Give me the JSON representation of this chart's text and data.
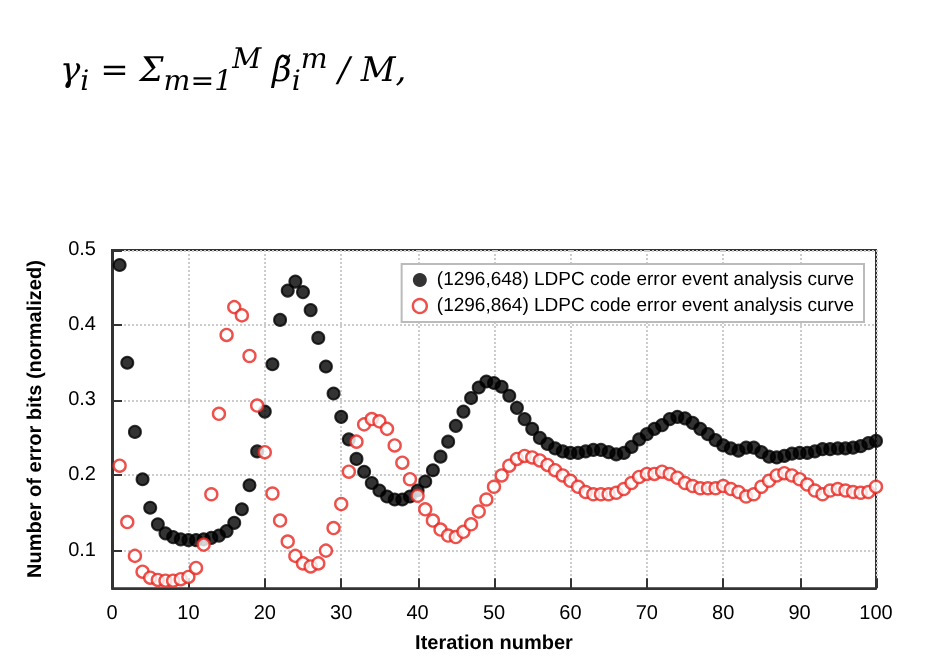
{
  "chart_data": {
    "type": "scatter",
    "xlabel": "Iteration number",
    "ylabel": "Number of error bits (normalized)",
    "annotations": [
      "γ$_{i}$ = Σ$_{m=1}$$^{M}$ β̃$_{i}$$^{m}$ / M,"
    ],
    "x": [
      1,
      2,
      3,
      4,
      5,
      6,
      7,
      8,
      9,
      10,
      11,
      12,
      13,
      14,
      15,
      16,
      17,
      18,
      19,
      20,
      21,
      22,
      23,
      24,
      25,
      26,
      27,
      28,
      29,
      30,
      31,
      32,
      33,
      34,
      35,
      36,
      37,
      38,
      39,
      40,
      41,
      42,
      43,
      44,
      45,
      46,
      47,
      48,
      49,
      50,
      51,
      52,
      53,
      54,
      55,
      56,
      57,
      58,
      59,
      60,
      61,
      62,
      63,
      64,
      65,
      66,
      67,
      68,
      69,
      70,
      71,
      72,
      73,
      74,
      75,
      76,
      77,
      78,
      79,
      80,
      81,
      82,
      83,
      84,
      85,
      86,
      87,
      88,
      89,
      90,
      91,
      92,
      93,
      94,
      95,
      96,
      97,
      98,
      99,
      100
    ],
    "series": [
      {
        "name": "(1296,648) LDPC code error event analysis curve",
        "color": "#000000",
        "values": [
          0.48,
          0.35,
          0.258,
          0.195,
          0.157,
          0.135,
          0.123,
          0.118,
          0.115,
          0.114,
          0.114,
          0.115,
          0.117,
          0.12,
          0.126,
          0.137,
          0.155,
          0.187,
          0.232,
          0.285,
          0.348,
          0.407,
          0.446,
          0.458,
          0.444,
          0.42,
          0.383,
          0.345,
          0.309,
          0.278,
          0.248,
          0.222,
          0.205,
          0.19,
          0.18,
          0.172,
          0.168,
          0.168,
          0.172,
          0.18,
          0.192,
          0.207,
          0.225,
          0.245,
          0.266,
          0.285,
          0.303,
          0.317,
          0.325,
          0.323,
          0.318,
          0.306,
          0.29,
          0.275,
          0.262,
          0.25,
          0.242,
          0.236,
          0.232,
          0.23,
          0.23,
          0.232,
          0.234,
          0.234,
          0.231,
          0.228,
          0.23,
          0.238,
          0.248,
          0.255,
          0.262,
          0.267,
          0.275,
          0.278,
          0.276,
          0.27,
          0.262,
          0.255,
          0.247,
          0.24,
          0.236,
          0.233,
          0.237,
          0.237,
          0.231,
          0.225,
          0.224,
          0.226,
          0.229,
          0.23,
          0.23,
          0.232,
          0.235,
          0.235,
          0.236,
          0.236,
          0.237,
          0.239,
          0.243,
          0.246
        ]
      },
      {
        "name": "(1296,864) LDPC code error event analysis curve",
        "color": "#e8261f",
        "values": [
          0.213,
          0.138,
          0.093,
          0.072,
          0.064,
          0.061,
          0.06,
          0.06,
          0.062,
          0.065,
          0.077,
          0.108,
          0.175,
          0.282,
          0.387,
          0.424,
          0.413,
          0.359,
          0.293,
          0.231,
          0.176,
          0.14,
          0.112,
          0.093,
          0.083,
          0.079,
          0.083,
          0.1,
          0.13,
          0.162,
          0.205,
          0.245,
          0.268,
          0.275,
          0.272,
          0.262,
          0.24,
          0.217,
          0.195,
          0.173,
          0.155,
          0.14,
          0.128,
          0.12,
          0.118,
          0.125,
          0.135,
          0.152,
          0.168,
          0.185,
          0.2,
          0.213,
          0.222,
          0.226,
          0.224,
          0.22,
          0.214,
          0.207,
          0.2,
          0.193,
          0.185,
          0.178,
          0.175,
          0.175,
          0.175,
          0.177,
          0.182,
          0.19,
          0.198,
          0.202,
          0.202,
          0.205,
          0.202,
          0.197,
          0.19,
          0.186,
          0.183,
          0.183,
          0.183,
          0.186,
          0.182,
          0.178,
          0.172,
          0.175,
          0.185,
          0.193,
          0.2,
          0.203,
          0.2,
          0.195,
          0.188,
          0.18,
          0.175,
          0.18,
          0.182,
          0.18,
          0.178,
          0.177,
          0.178,
          0.185
        ]
      }
    ],
    "xlim": [
      0,
      100
    ],
    "xticks": [
      0,
      10,
      20,
      30,
      40,
      50,
      60,
      70,
      80,
      90,
      100
    ],
    "ylim": [
      0.05,
      0.5
    ],
    "yticks": [
      0.1,
      0.2,
      0.3,
      0.4,
      0.5
    ],
    "grid": true,
    "legend": "top right",
    "marker": "circle"
  }
}
